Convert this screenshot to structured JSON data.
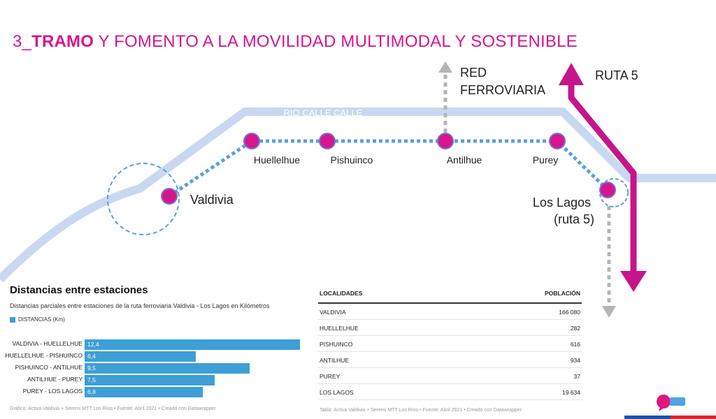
{
  "title": {
    "prefix": "3_",
    "bold": "TRAMO",
    "rest": " Y FOMENTO A LA MOVILIDAD MULTIMODAL Y SOSTENIBLE"
  },
  "map": {
    "river_label": "RIO CALLE CALLE",
    "red_ferroviaria": [
      "RED",
      "FERROVIARIA"
    ],
    "ruta5_label": "RUTA 5",
    "stations": [
      {
        "name": "Valdivia"
      },
      {
        "name": "Huellelhue"
      },
      {
        "name": "Pishuinco"
      },
      {
        "name": "Antilhue"
      },
      {
        "name": "Purey"
      },
      {
        "name": "Los Lagos",
        "name2": "(ruta 5)"
      }
    ],
    "colors": {
      "river": "#c8d8f0",
      "rail": "#5b9fe0",
      "station": "#d6168c",
      "ruta": "#c6158a",
      "network": "#b5b5b5"
    }
  },
  "bar_chart": {
    "title": "Distancias entre estaciones",
    "subtitle": "Distancias parciales entre estaciones de la ruta ferroviaria Valdivia - Los Lagos en Kilómetros",
    "legend": "DISTANCIAS (Km)",
    "footer": "Gráfico: Activa Valdivia + Seremi MTT Los Ríos • Fuente: Abril 2021 • Creado con Datawrapper"
  },
  "chart_data": {
    "type": "bar",
    "title": "Distancias entre estaciones",
    "subtitle": "Distancias parciales entre estaciones de la ruta ferroviaria Valdivia - Los Lagos en Kilómetros",
    "categories": [
      "VALDIVIA - HUELLELHUE",
      "HUELLELHUE - PISHUINCO",
      "PISHUINCO - ANTILHUE",
      "ANTILHUE - PUREY",
      "PUREY - LOS LAGOS"
    ],
    "series": [
      {
        "name": "DISTANCIAS (Km)",
        "values": [
          12.4,
          6.4,
          9.5,
          7.5,
          6.8
        ]
      }
    ],
    "value_labels": [
      "12,4",
      "6,4",
      "9,5",
      "7,5",
      "6,8"
    ],
    "orientation": "horizontal",
    "xlim": [
      0,
      12.4
    ],
    "color": "#3d9fd6"
  },
  "table": {
    "headers": [
      "LOCALIDADES",
      "POBLACIÓN"
    ],
    "rows": [
      [
        "VALDIVIA",
        "166 080"
      ],
      [
        "HUELLELHUE",
        "282"
      ],
      [
        "PISHUINCO",
        "616"
      ],
      [
        "ANTILHUE",
        "934"
      ],
      [
        "PUREY",
        "37"
      ],
      [
        "LOS LAGOS",
        "19 634"
      ]
    ],
    "footer": "Tabla: Activa Valdivia + Seremi MTT Los Ríos • Fuente: Abril 2021 • Creado con Datawrapper"
  }
}
